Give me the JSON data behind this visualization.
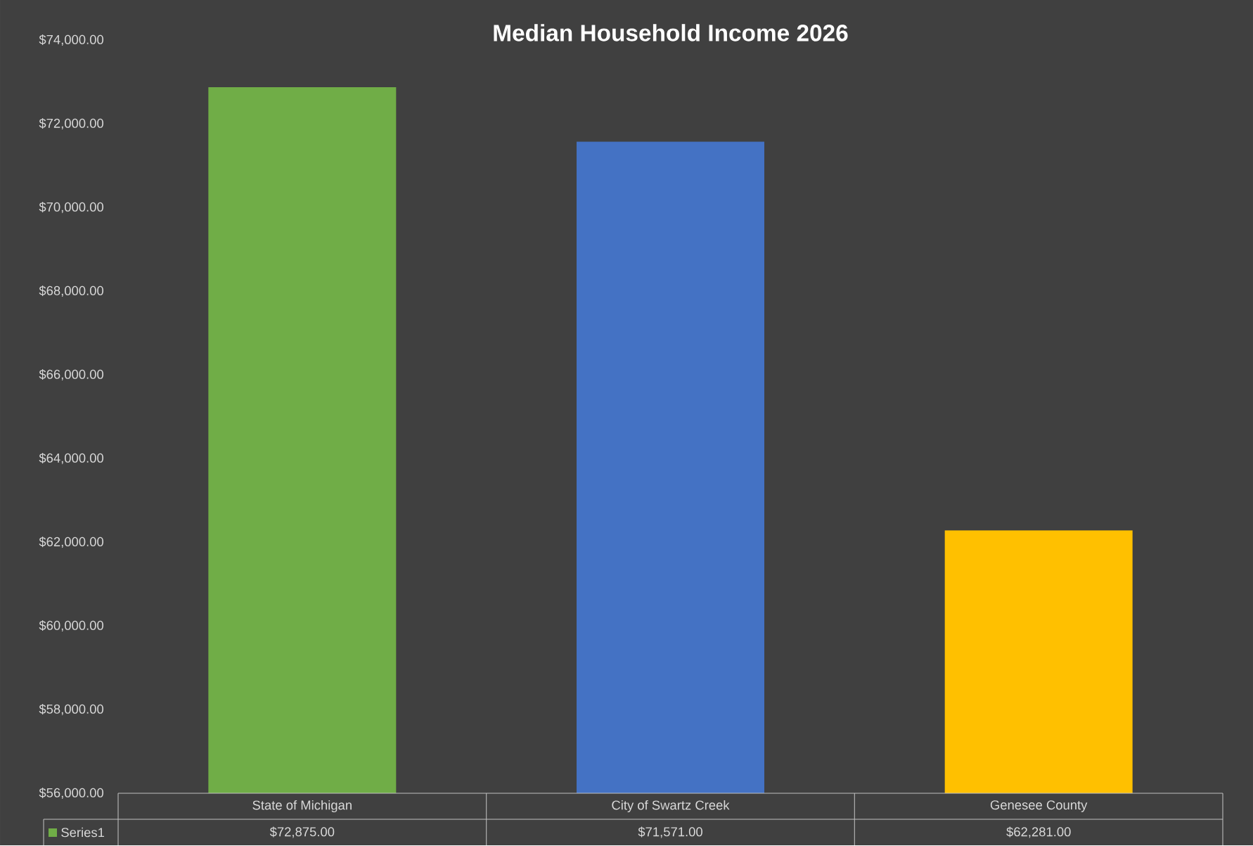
{
  "chart_data": {
    "type": "bar",
    "title": "Median Household Income 2026",
    "categories": [
      "State of Michigan",
      "City of Swartz Creek",
      "Genesee County"
    ],
    "series": [
      {
        "name": "Series1",
        "color": "#70ad47",
        "colors": [
          "#70ad47",
          "#4472c4",
          "#ffc000"
        ],
        "values": [
          72875,
          71571,
          62281
        ],
        "value_labels": [
          "$72,875.00",
          "$71,571.00",
          "$62,281.00"
        ]
      }
    ],
    "ylim": [
      56000,
      74000
    ],
    "yticks": [
      {
        "value": 56000,
        "label": "$56,000.00"
      },
      {
        "value": 58000,
        "label": "$58,000.00"
      },
      {
        "value": 60000,
        "label": "$60,000.00"
      },
      {
        "value": 62000,
        "label": "$62,000.00"
      },
      {
        "value": 64000,
        "label": "$64,000.00"
      },
      {
        "value": 66000,
        "label": "$66,000.00"
      },
      {
        "value": 68000,
        "label": "$68,000.00"
      },
      {
        "value": 70000,
        "label": "$70,000.00"
      },
      {
        "value": 72000,
        "label": "$72,000.00"
      },
      {
        "value": 74000,
        "label": "$74,000.00"
      }
    ],
    "data_labels": true,
    "legend": "bottom left",
    "grid": false
  }
}
